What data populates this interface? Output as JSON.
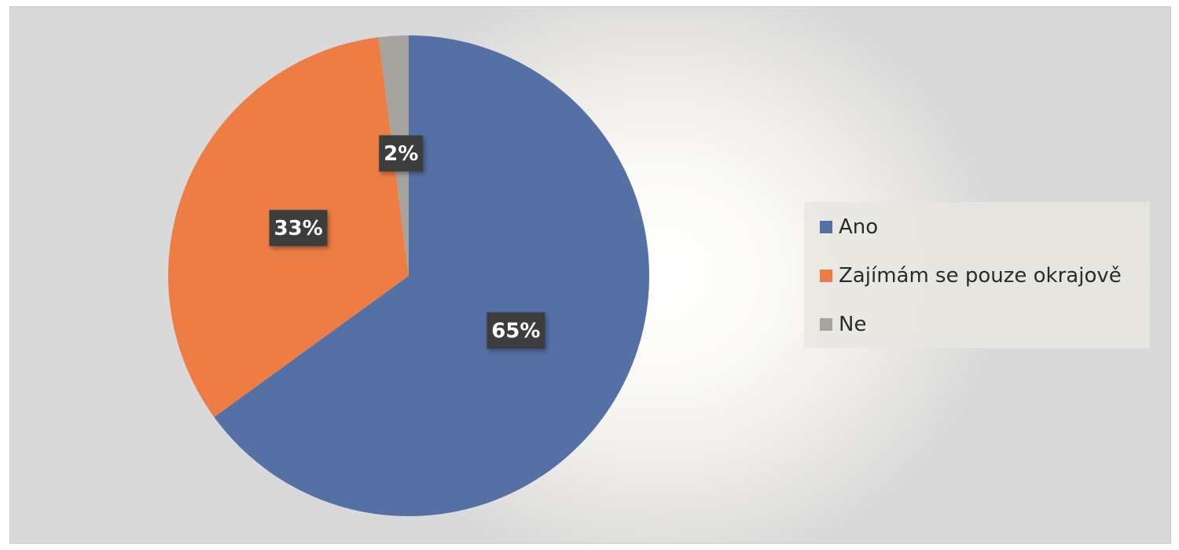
{
  "chart_data": {
    "type": "pie",
    "categories": [
      "Ano",
      "Zajímám se pouze okrajově",
      "Ne"
    ],
    "values": [
      65,
      33,
      2
    ],
    "labels": [
      "65%",
      "33%",
      "2%"
    ],
    "colors": [
      "#5470a5",
      "#ed7d44",
      "#a5a59d"
    ],
    "title": "",
    "legend_position": "right"
  },
  "legend": {
    "items": [
      {
        "label": "Ano",
        "color": "#5470a5"
      },
      {
        "label": "Zajímám se pouze okrajově",
        "color": "#ed7d44"
      },
      {
        "label": "Ne",
        "color": "#a5a59d"
      }
    ]
  }
}
